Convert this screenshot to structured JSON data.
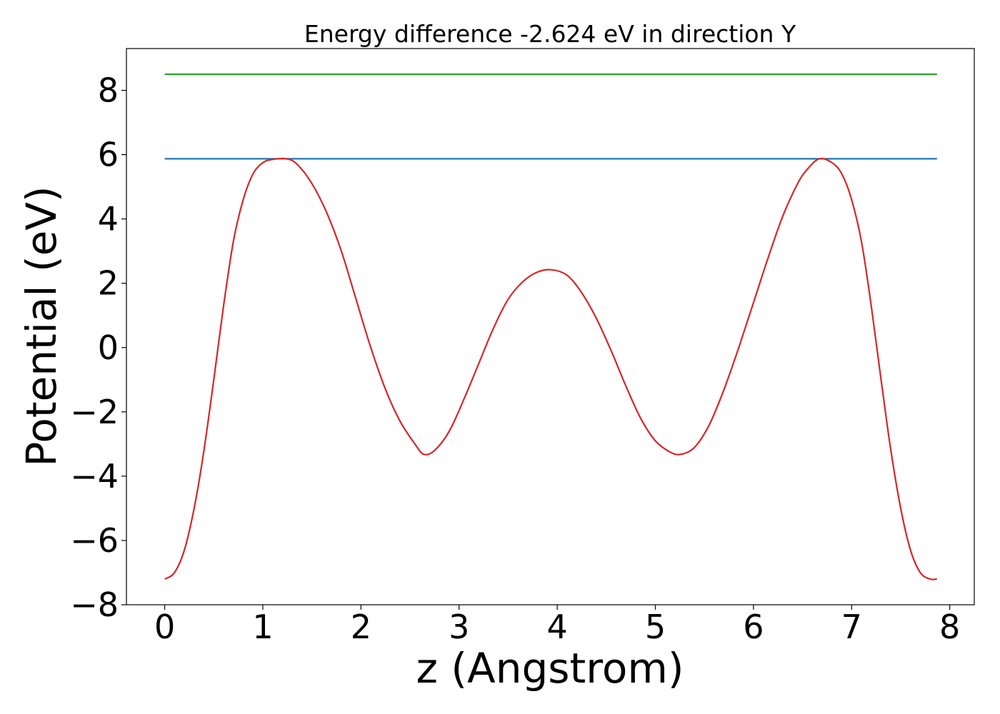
{
  "chart_data": {
    "type": "line",
    "title": "Energy difference -2.624 eV in direction Y",
    "xlabel": "z (Angstrom)",
    "ylabel": "Potential (eV)",
    "xlim": [
      -0.39,
      8.25
    ],
    "ylim": [
      -8.0,
      9.3
    ],
    "xticks": [
      0,
      1,
      2,
      3,
      4,
      5,
      6,
      7,
      8
    ],
    "xtick_labels": [
      "0",
      "1",
      "2",
      "3",
      "4",
      "5",
      "6",
      "7",
      "8"
    ],
    "yticks": [
      -8,
      -6,
      -4,
      -2,
      0,
      2,
      4,
      6,
      8
    ],
    "ytick_labels": [
      "−8",
      "−6",
      "−4",
      "−2",
      "0",
      "2",
      "4",
      "6",
      "8"
    ],
    "grid": false,
    "series": [
      {
        "color": "#2ca02c",
        "x": [
          0,
          7.87
        ],
        "y": [
          8.5,
          8.5
        ]
      },
      {
        "color": "#1f77b4",
        "x": [
          0,
          7.87
        ],
        "y": [
          5.87,
          5.87
        ]
      },
      {
        "color": "#d62728",
        "x": [
          0,
          0.1,
          0.2,
          0.3,
          0.4,
          0.5,
          0.6,
          0.7,
          0.8,
          0.9,
          1.0,
          1.1,
          1.24,
          1.35,
          1.5,
          1.65,
          1.8,
          1.95,
          2.1,
          2.25,
          2.4,
          2.55,
          2.64,
          2.75,
          2.9,
          3.05,
          3.2,
          3.35,
          3.5,
          3.65,
          3.8,
          3.94,
          4.1,
          4.25,
          4.4,
          4.55,
          4.7,
          4.85,
          5.0,
          5.15,
          5.26,
          5.4,
          5.55,
          5.7,
          5.85,
          6.0,
          6.15,
          6.3,
          6.45,
          6.55,
          6.67,
          6.8,
          6.9,
          7.0,
          7.1,
          7.2,
          7.3,
          7.4,
          7.5,
          7.6,
          7.7,
          7.8,
          7.87
        ],
        "y": [
          -7.2,
          -7.0,
          -6.3,
          -5.0,
          -3.2,
          -1.0,
          1.3,
          3.3,
          4.6,
          5.4,
          5.75,
          5.85,
          5.87,
          5.7,
          5.1,
          4.2,
          3.0,
          1.5,
          0.0,
          -1.3,
          -2.3,
          -3.0,
          -3.32,
          -3.2,
          -2.6,
          -1.6,
          -0.5,
          0.6,
          1.5,
          2.05,
          2.35,
          2.42,
          2.25,
          1.7,
          0.9,
          -0.1,
          -1.2,
          -2.2,
          -2.9,
          -3.25,
          -3.32,
          -3.1,
          -2.4,
          -1.3,
          0.0,
          1.4,
          2.8,
          4.1,
          5.1,
          5.55,
          5.87,
          5.75,
          5.4,
          4.6,
          3.3,
          1.3,
          -1.0,
          -3.2,
          -5.0,
          -6.3,
          -7.0,
          -7.2,
          -7.2
        ]
      }
    ]
  }
}
